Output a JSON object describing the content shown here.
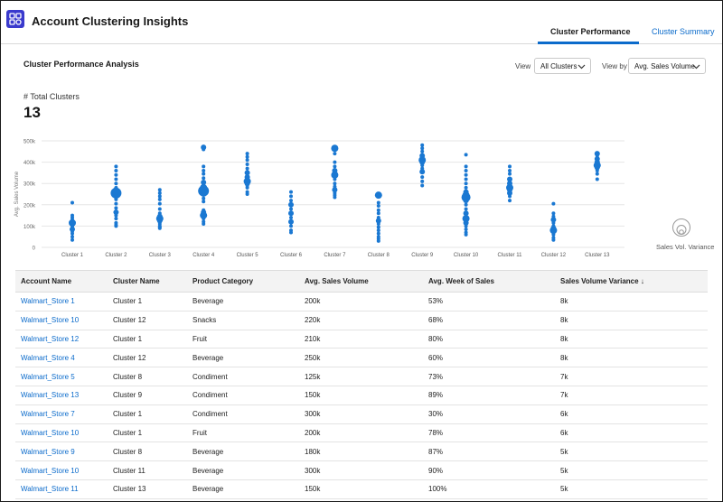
{
  "header": {
    "title": "Account Clustering Insights",
    "tabs": [
      {
        "label": "Cluster Performance",
        "active": true
      },
      {
        "label": "Cluster Summary",
        "active": false
      }
    ]
  },
  "section": {
    "title": "Cluster Performance Analysis",
    "view_label": "View",
    "view_value": "All Clusters",
    "viewby_label": "View by",
    "viewby_value": "Avg. Sales Volume"
  },
  "kpi": {
    "label": "# Total Clusters",
    "value": "13"
  },
  "colors": {
    "accent": "#0b6bcb",
    "dot": "#1a78d2",
    "brand": "#3a3acd"
  },
  "chart_data": {
    "type": "scatter",
    "ylabel": "Avg. Sales Volume",
    "y_ticks": [
      "0",
      "100k",
      "200k",
      "300k",
      "400k",
      "500k"
    ],
    "ylim": [
      0,
      500000
    ],
    "categories": [
      "Cluster 1",
      "Cluster 2",
      "Cluster 3",
      "Cluster 4",
      "Cluster 5",
      "Cluster 6",
      "Cluster 7",
      "Cluster 8",
      "Cluster 9",
      "Cluster 10",
      "Cluster 11",
      "Cluster 12",
      "Cluster 13"
    ],
    "size_legend": "Sales Vol. Variance",
    "clusters": [
      {
        "name": "Cluster 1",
        "points": [
          [
            210000,
            2
          ],
          [
            150000,
            2
          ],
          [
            140000,
            2
          ],
          [
            130000,
            2
          ],
          [
            115000,
            4
          ],
          [
            100000,
            2
          ],
          [
            95000,
            2
          ],
          [
            85000,
            3
          ],
          [
            75000,
            2
          ],
          [
            65000,
            2
          ],
          [
            50000,
            2
          ],
          [
            35000,
            2
          ]
        ]
      },
      {
        "name": "Cluster 2",
        "points": [
          [
            380000,
            2
          ],
          [
            360000,
            2
          ],
          [
            340000,
            2
          ],
          [
            320000,
            2
          ],
          [
            300000,
            2
          ],
          [
            280000,
            2
          ],
          [
            265000,
            4
          ],
          [
            255000,
            6
          ],
          [
            240000,
            3
          ],
          [
            225000,
            2
          ],
          [
            205000,
            2
          ],
          [
            185000,
            2
          ],
          [
            165000,
            3
          ],
          [
            150000,
            2
          ],
          [
            135000,
            2
          ],
          [
            115000,
            2
          ],
          [
            105000,
            2
          ],
          [
            100000,
            2
          ]
        ]
      },
      {
        "name": "Cluster 3",
        "points": [
          [
            270000,
            2
          ],
          [
            255000,
            2
          ],
          [
            240000,
            2
          ],
          [
            225000,
            2
          ],
          [
            205000,
            2
          ],
          [
            180000,
            2
          ],
          [
            160000,
            2
          ],
          [
            145000,
            3
          ],
          [
            135000,
            4
          ],
          [
            125000,
            3
          ],
          [
            110000,
            2
          ],
          [
            100000,
            2
          ],
          [
            95000,
            2
          ],
          [
            90000,
            2
          ]
        ]
      },
      {
        "name": "Cluster 4",
        "points": [
          [
            470000,
            3
          ],
          [
            460000,
            2
          ],
          [
            380000,
            2
          ],
          [
            360000,
            2
          ],
          [
            345000,
            2
          ],
          [
            325000,
            2
          ],
          [
            305000,
            3
          ],
          [
            280000,
            4
          ],
          [
            265000,
            6
          ],
          [
            250000,
            3
          ],
          [
            230000,
            2
          ],
          [
            215000,
            2
          ],
          [
            175000,
            2
          ],
          [
            165000,
            3
          ],
          [
            150000,
            4
          ],
          [
            135000,
            2
          ],
          [
            120000,
            2
          ],
          [
            110000,
            2
          ]
        ]
      },
      {
        "name": "Cluster 5",
        "points": [
          [
            440000,
            2
          ],
          [
            425000,
            2
          ],
          [
            410000,
            2
          ],
          [
            390000,
            2
          ],
          [
            370000,
            2
          ],
          [
            350000,
            3
          ],
          [
            330000,
            3
          ],
          [
            310000,
            4
          ],
          [
            300000,
            3
          ],
          [
            290000,
            2
          ],
          [
            280000,
            2
          ],
          [
            260000,
            2
          ],
          [
            250000,
            2
          ]
        ]
      },
      {
        "name": "Cluster 6",
        "points": [
          [
            260000,
            2
          ],
          [
            240000,
            2
          ],
          [
            220000,
            2
          ],
          [
            200000,
            3
          ],
          [
            180000,
            2
          ],
          [
            160000,
            3
          ],
          [
            140000,
            2
          ],
          [
            120000,
            3
          ],
          [
            100000,
            2
          ],
          [
            80000,
            2
          ],
          [
            70000,
            2
          ]
        ]
      },
      {
        "name": "Cluster 7",
        "points": [
          [
            465000,
            4
          ],
          [
            440000,
            2
          ],
          [
            400000,
            2
          ],
          [
            380000,
            2
          ],
          [
            360000,
            3
          ],
          [
            340000,
            4
          ],
          [
            320000,
            2
          ],
          [
            300000,
            2
          ],
          [
            285000,
            2
          ],
          [
            270000,
            3
          ],
          [
            255000,
            2
          ],
          [
            245000,
            2
          ],
          [
            235000,
            2
          ]
        ]
      },
      {
        "name": "Cluster 8",
        "points": [
          [
            245000,
            4
          ],
          [
            210000,
            2
          ],
          [
            195000,
            2
          ],
          [
            175000,
            2
          ],
          [
            160000,
            2
          ],
          [
            140000,
            2
          ],
          [
            125000,
            3
          ],
          [
            110000,
            2
          ],
          [
            95000,
            2
          ],
          [
            80000,
            2
          ],
          [
            65000,
            2
          ],
          [
            50000,
            2
          ],
          [
            40000,
            2
          ],
          [
            30000,
            2
          ]
        ]
      },
      {
        "name": "Cluster 9",
        "points": [
          [
            480000,
            2
          ],
          [
            465000,
            2
          ],
          [
            450000,
            2
          ],
          [
            430000,
            3
          ],
          [
            410000,
            4
          ],
          [
            400000,
            3
          ],
          [
            385000,
            2
          ],
          [
            370000,
            2
          ],
          [
            355000,
            3
          ],
          [
            330000,
            2
          ],
          [
            310000,
            2
          ],
          [
            290000,
            2
          ]
        ]
      },
      {
        "name": "Cluster 10",
        "points": [
          [
            435000,
            2
          ],
          [
            380000,
            2
          ],
          [
            360000,
            2
          ],
          [
            340000,
            2
          ],
          [
            320000,
            2
          ],
          [
            300000,
            2
          ],
          [
            280000,
            2
          ],
          [
            260000,
            3
          ],
          [
            245000,
            4
          ],
          [
            235000,
            5
          ],
          [
            220000,
            3
          ],
          [
            200000,
            2
          ],
          [
            180000,
            2
          ],
          [
            160000,
            3
          ],
          [
            135000,
            4
          ],
          [
            115000,
            3
          ],
          [
            100000,
            2
          ],
          [
            85000,
            2
          ],
          [
            70000,
            2
          ],
          [
            60000,
            2
          ]
        ]
      },
      {
        "name": "Cluster 11",
        "points": [
          [
            380000,
            2
          ],
          [
            360000,
            2
          ],
          [
            345000,
            2
          ],
          [
            320000,
            3
          ],
          [
            300000,
            3
          ],
          [
            280000,
            4
          ],
          [
            270000,
            3
          ],
          [
            255000,
            3
          ],
          [
            240000,
            2
          ],
          [
            220000,
            2
          ]
        ]
      },
      {
        "name": "Cluster 12",
        "points": [
          [
            205000,
            2
          ],
          [
            160000,
            2
          ],
          [
            145000,
            2
          ],
          [
            130000,
            3
          ],
          [
            115000,
            2
          ],
          [
            100000,
            2
          ],
          [
            90000,
            3
          ],
          [
            80000,
            4
          ],
          [
            70000,
            2
          ],
          [
            60000,
            2
          ],
          [
            45000,
            2
          ],
          [
            35000,
            2
          ]
        ]
      },
      {
        "name": "Cluster 13",
        "points": [
          [
            440000,
            3
          ],
          [
            430000,
            2
          ],
          [
            415000,
            3
          ],
          [
            400000,
            3
          ],
          [
            385000,
            4
          ],
          [
            375000,
            3
          ],
          [
            360000,
            2
          ],
          [
            345000,
            2
          ],
          [
            320000,
            2
          ]
        ]
      }
    ]
  },
  "table": {
    "columns": [
      "Account Name",
      "Cluster Name",
      "Product Category",
      "Avg. Sales Volume",
      "Avg. Week of Sales",
      "Sales Volume Variance"
    ],
    "sort_indicator": "↓",
    "rows": [
      [
        "Walmart_Store 1",
        "Cluster 1",
        "Beverage",
        "200k",
        "53%",
        "8k"
      ],
      [
        "Walmart_Store 10",
        "Cluster 12",
        "Snacks",
        "220k",
        "68%",
        "8k"
      ],
      [
        "Walmart_Store 12",
        "Cluster 1",
        "Fruit",
        "210k",
        "80%",
        "8k"
      ],
      [
        "Walmart_Store 4",
        "Cluster 12",
        "Beverage",
        "250k",
        "60%",
        "8k"
      ],
      [
        "Walmart_Store 5",
        "Cluster 8",
        "Condiment",
        "125k",
        "73%",
        "7k"
      ],
      [
        "Walmart_Store 13",
        "Cluster 9",
        "Condiment",
        "150k",
        "89%",
        "7k"
      ],
      [
        "Walmart_Store 7",
        "Cluster 1",
        "Condiment",
        "300k",
        "30%",
        "6k"
      ],
      [
        "Walmart_Store 10",
        "Cluster 1",
        "Fruit",
        "200k",
        "78%",
        "6k"
      ],
      [
        "Walmart_Store 9",
        "Cluster 8",
        "Beverage",
        "180k",
        "87%",
        "5k"
      ],
      [
        "Walmart_Store 10",
        "Cluster 11",
        "Beverage",
        "300k",
        "90%",
        "5k"
      ],
      [
        "Walmart_Store 11",
        "Cluster 13",
        "Beverage",
        "150k",
        "100%",
        "5k"
      ]
    ]
  }
}
